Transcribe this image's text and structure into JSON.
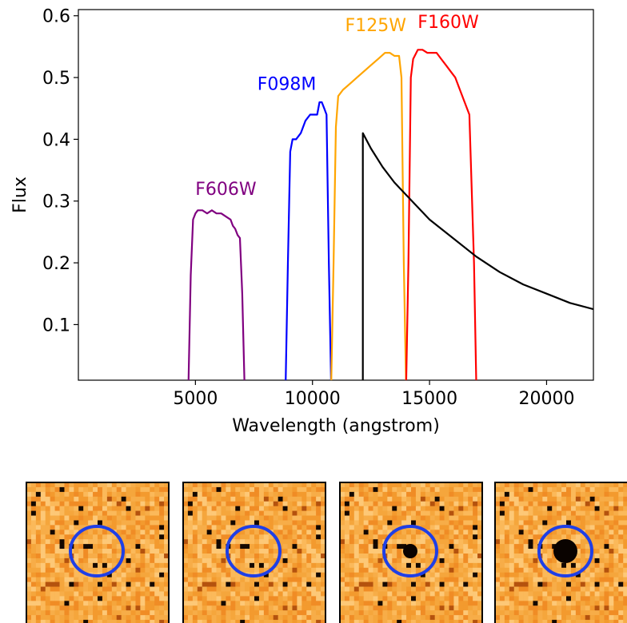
{
  "chart_data": [
    {
      "type": "line",
      "title": "",
      "xlabel": "Wavelength (angstrom)",
      "ylabel": "Flux",
      "xlim": [
        0,
        22000
      ],
      "ylim": [
        0.01,
        0.61
      ],
      "x_ticks": [
        {
          "value": 5000,
          "label": "5000"
        },
        {
          "value": 10000,
          "label": "10000"
        },
        {
          "value": 15000,
          "label": "15000"
        },
        {
          "value": 20000,
          "label": "20000"
        }
      ],
      "y_ticks": [
        {
          "value": 0.1,
          "label": "0.1"
        },
        {
          "value": 0.2,
          "label": "0.2"
        },
        {
          "value": 0.3,
          "label": "0.3"
        },
        {
          "value": 0.4,
          "label": "0.4"
        },
        {
          "value": 0.5,
          "label": "0.5"
        },
        {
          "value": 0.6,
          "label": "0.6"
        }
      ],
      "grid": false,
      "series": [
        {
          "name": "F606W",
          "color": "#800080",
          "label_at": [
            6300,
            0.31
          ],
          "x": [
            4700,
            4800,
            4900,
            5000,
            5100,
            5300,
            5500,
            5700,
            5900,
            6100,
            6300,
            6500,
            6600,
            6700,
            6800,
            6900,
            7000,
            7100
          ],
          "y": [
            0.0,
            0.18,
            0.27,
            0.28,
            0.285,
            0.285,
            0.28,
            0.285,
            0.28,
            0.28,
            0.275,
            0.27,
            0.26,
            0.255,
            0.245,
            0.24,
            0.15,
            0.0
          ]
        },
        {
          "name": "F098M",
          "color": "#0000ff",
          "label_at": [
            8900,
            0.48
          ],
          "x": [
            8850,
            8950,
            9050,
            9150,
            9300,
            9500,
            9700,
            9900,
            10100,
            10200,
            10300,
            10400,
            10500,
            10600,
            10700,
            10800
          ],
          "y": [
            0.0,
            0.2,
            0.38,
            0.4,
            0.4,
            0.41,
            0.43,
            0.44,
            0.44,
            0.44,
            0.46,
            0.46,
            0.45,
            0.44,
            0.2,
            0.0
          ]
        },
        {
          "name": "F125W",
          "color": "#ffa500",
          "label_at": [
            12700,
            0.575
          ],
          "x": [
            10800,
            10900,
            11000,
            11100,
            11300,
            11600,
            11900,
            12200,
            12500,
            12800,
            13100,
            13300,
            13500,
            13700,
            13800,
            13900,
            14000
          ],
          "y": [
            0.0,
            0.2,
            0.42,
            0.47,
            0.48,
            0.49,
            0.5,
            0.51,
            0.52,
            0.53,
            0.54,
            0.54,
            0.535,
            0.535,
            0.5,
            0.2,
            0.0
          ]
        },
        {
          "name": "F160W",
          "color": "#ff0000",
          "label_at": [
            15800,
            0.58
          ],
          "x": [
            14000,
            14100,
            14200,
            14300,
            14500,
            14700,
            14900,
            15100,
            15300,
            15500,
            15700,
            15900,
            16100,
            16300,
            16500,
            16700,
            16900,
            17000
          ],
          "y": [
            0.0,
            0.2,
            0.5,
            0.53,
            0.545,
            0.545,
            0.54,
            0.54,
            0.54,
            0.53,
            0.52,
            0.51,
            0.5,
            0.48,
            0.46,
            0.44,
            0.2,
            0.0
          ]
        },
        {
          "name": "",
          "color": "#000000",
          "x": [
            12150,
            12150,
            12500,
            13000,
            13500,
            14000,
            15000,
            16000,
            17000,
            18000,
            19000,
            20000,
            21000,
            22000
          ],
          "y": [
            0.0,
            0.41,
            0.385,
            0.355,
            0.33,
            0.31,
            0.27,
            0.24,
            0.21,
            0.185,
            0.165,
            0.15,
            0.135,
            0.125
          ]
        }
      ]
    }
  ],
  "cutouts": [
    {
      "panel": 1,
      "source_size": 0,
      "ring_color": "#1f3fe6",
      "background": "#f7a23b"
    },
    {
      "panel": 2,
      "source_size": 0,
      "ring_color": "#1f3fe6",
      "background": "#f7a23b"
    },
    {
      "panel": 3,
      "source_size": 0.6,
      "ring_color": "#1f3fe6",
      "background": "#f7a23b"
    },
    {
      "panel": 4,
      "source_size": 1.0,
      "ring_color": "#1f3fe6",
      "background": "#f7a23b"
    }
  ]
}
